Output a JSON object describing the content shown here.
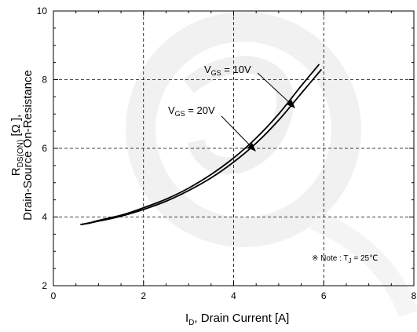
{
  "chart_data": {
    "type": "line",
    "title": "",
    "xlabel": {
      "main": "I",
      "sub": "D",
      "rest": ", Drain Current [A]"
    },
    "ylabel": {
      "line1_main": "R",
      "line1_sub": "DS(ON)",
      "line1_rest": " [Ω ],",
      "line2": "Drain-Source On-Resistance"
    },
    "xlim": [
      0,
      8
    ],
    "ylim": [
      2,
      10
    ],
    "xticks": [
      0,
      2,
      4,
      6,
      8
    ],
    "yticks": [
      2,
      4,
      6,
      8,
      10
    ],
    "grid": true,
    "series": [
      {
        "name": "VGS = 10V",
        "label": {
          "main": "V",
          "sub": "GS",
          "rest": " = 10V"
        },
        "x": [
          0.6,
          0.8,
          1.0,
          1.3,
          1.6,
          2.0,
          2.5,
          3.0,
          3.5,
          4.0,
          4.5,
          5.0,
          5.5,
          5.9
        ],
        "y": [
          3.78,
          3.83,
          3.9,
          3.99,
          4.09,
          4.27,
          4.52,
          4.84,
          5.24,
          5.72,
          6.3,
          7.0,
          7.82,
          8.45
        ]
      },
      {
        "name": "VGS = 20V",
        "label": {
          "main": "V",
          "sub": "GS",
          "rest": " = 20V"
        },
        "x": [
          0.6,
          0.8,
          1.0,
          1.3,
          1.6,
          2.0,
          2.5,
          3.0,
          3.5,
          4.0,
          4.5,
          5.0,
          5.5,
          5.95
        ],
        "y": [
          3.78,
          3.82,
          3.88,
          3.96,
          4.06,
          4.22,
          4.46,
          4.77,
          5.14,
          5.6,
          6.15,
          6.82,
          7.6,
          8.3
        ]
      }
    ],
    "note": {
      "prefix": "※ Note : T",
      "sub": "J",
      "rest": " = 25℃"
    }
  },
  "colors": {
    "line": "#000000",
    "grid": "#000000",
    "watermark": "#e9e9e9"
  }
}
